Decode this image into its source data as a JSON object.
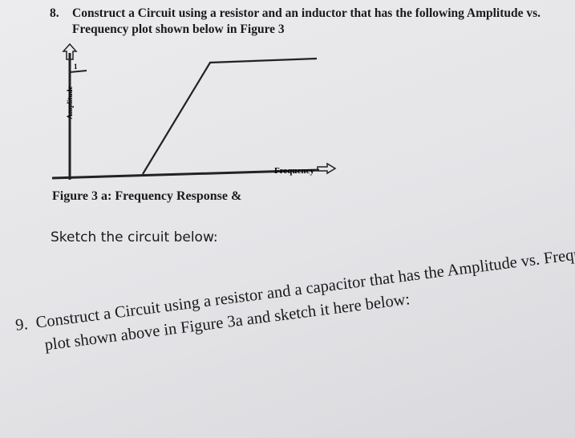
{
  "question_8": {
    "number": "8.",
    "lines": [
      "Construct a Circuit using a resistor and an inductor that has the following Amplitude vs.",
      "Frequency plot shown below in Figure 3"
    ]
  },
  "figure": {
    "y_label": "Amplitude",
    "x_label": "Frequency",
    "tick_label": "1",
    "caption": "Figure 3 a: Frequency Response &"
  },
  "sketch_prompt": "Sketch the circuit below:",
  "question_9": {
    "number": "9.",
    "lines": [
      "Construct a Circuit using a resistor and a capacitor that has the Amplitude vs. Frequency",
      "plot shown above in Figure 3a and sketch it here below:"
    ]
  }
}
